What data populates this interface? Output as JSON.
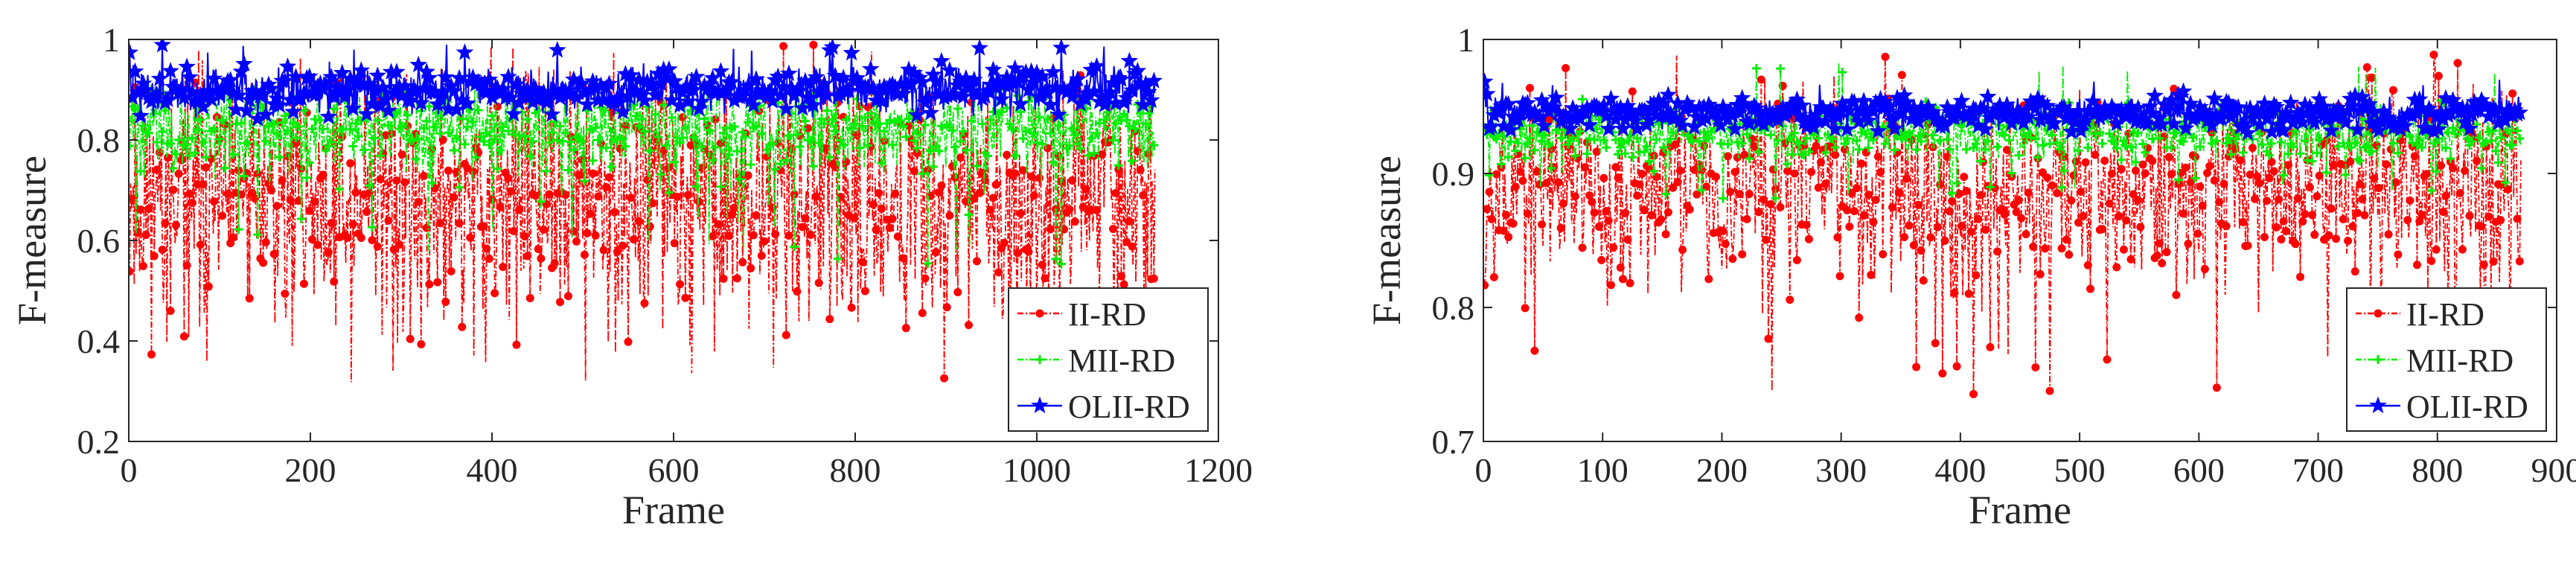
{
  "chart_data": [
    {
      "type": "line",
      "title": "",
      "xlabel": "Frame",
      "ylabel": "F-measure",
      "xlim": [
        0,
        1200
      ],
      "ylim": [
        0.2,
        1
      ],
      "xticks": [
        0,
        200,
        400,
        600,
        800,
        1000,
        1200
      ],
      "yticks": [
        0.2,
        0.4,
        0.6,
        0.8,
        1
      ],
      "xtick_labels": [
        "0",
        "200",
        "400",
        "600",
        "800",
        "1000",
        "1200"
      ],
      "ytick_labels": [
        "0.2",
        "0.4",
        "0.6",
        "0.8",
        "1"
      ],
      "legend_position": "bottom-right",
      "frames": 1130,
      "series": [
        {
          "name": "II-RD",
          "color": "#ff0000",
          "marker": "dot",
          "line": "dash-dot",
          "mean": 0.68,
          "spread": 0.16,
          "min": 0.31,
          "max": 0.99
        },
        {
          "name": "MII-RD",
          "color": "#00ee00",
          "marker": "plus",
          "line": "dash-dot",
          "mean": 0.82,
          "spread": 0.06,
          "min": 0.55,
          "max": 0.9
        },
        {
          "name": "OLII-RD",
          "color": "#0000ff",
          "marker": "star",
          "line": "solid",
          "mean": 0.9,
          "spread": 0.03,
          "min": 0.84,
          "max": 0.99
        }
      ]
    },
    {
      "type": "line",
      "title": "",
      "xlabel": "Frame",
      "ylabel": "F-measure",
      "xlim": [
        0,
        900
      ],
      "ylim": [
        0.7,
        1
      ],
      "xticks": [
        0,
        100,
        200,
        300,
        400,
        500,
        600,
        700,
        800,
        900
      ],
      "yticks": [
        0.7,
        0.8,
        0.9,
        1
      ],
      "xtick_labels": [
        "0",
        "100",
        "200",
        "300",
        "400",
        "500",
        "600",
        "700",
        "800",
        "900"
      ],
      "ytick_labels": [
        "0.7",
        "0.8",
        "0.9",
        "1"
      ],
      "legend_position": "bottom-right",
      "frames": 870,
      "series": [
        {
          "name": "II-RD",
          "color": "#ff0000",
          "marker": "dot",
          "line": "dash-dot",
          "mean": 0.89,
          "spread": 0.05,
          "min": 0.73,
          "max": 0.99
        },
        {
          "name": "MII-RD",
          "color": "#00ee00",
          "marker": "plus",
          "line": "dash-dot",
          "mean": 0.93,
          "spread": 0.015,
          "min": 0.88,
          "max": 0.985
        },
        {
          "name": "OLII-RD",
          "color": "#0000ff",
          "marker": "star",
          "line": "solid",
          "mean": 0.945,
          "spread": 0.008,
          "min": 0.93,
          "max": 0.97
        }
      ]
    }
  ]
}
